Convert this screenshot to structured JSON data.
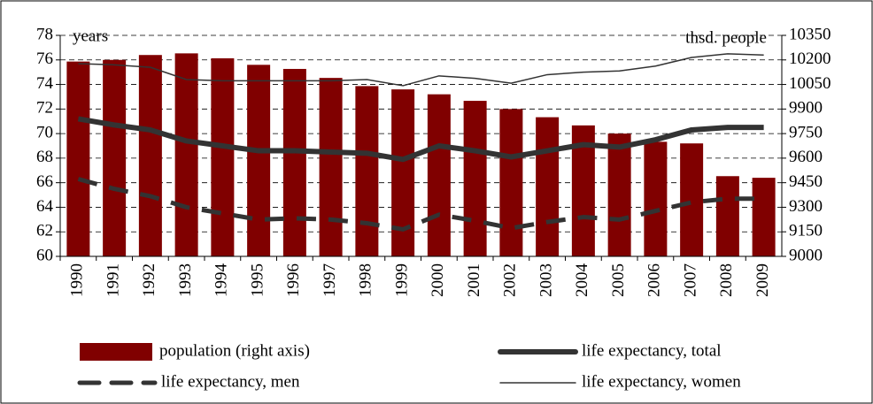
{
  "chart_data": {
    "type": "combo",
    "y_label": "years",
    "y2_label": "thsd. people",
    "categories": [
      "1990",
      "1991",
      "1992",
      "1993",
      "1994",
      "1995",
      "1996",
      "1997",
      "1998",
      "1999",
      "2000",
      "2001",
      "2002",
      "2003",
      "2004",
      "2005",
      "2006",
      "2007",
      "2008",
      "2009"
    ],
    "ylim": [
      60,
      78
    ],
    "yticks": [
      60,
      62,
      64,
      66,
      68,
      70,
      72,
      74,
      76,
      78
    ],
    "y2lim": [
      9000,
      10350
    ],
    "y2ticks": [
      9000,
      9150,
      9300,
      9450,
      9600,
      9750,
      9900,
      10050,
      10200,
      10350
    ],
    "grid": true,
    "series": [
      {
        "name": "population (right axis)",
        "type": "bar",
        "axis": "y2",
        "color": "#800000",
        "values": [
          10190,
          10200,
          10230,
          10240,
          10210,
          10170,
          10145,
          10090,
          10040,
          10020,
          9990,
          9950,
          9900,
          9850,
          9800,
          9750,
          9700,
          9690,
          9490,
          9480
        ]
      },
      {
        "name": "life expectancy, total",
        "type": "line",
        "color": "#333333",
        "line_width": 6,
        "style": "solid",
        "values": [
          71.2,
          70.7,
          70.3,
          69.4,
          69.0,
          68.6,
          68.6,
          68.5,
          68.4,
          67.9,
          69.0,
          68.6,
          68.1,
          68.6,
          69.1,
          68.9,
          69.5,
          70.3,
          70.5,
          70.5
        ]
      },
      {
        "name": "life expectancy, men",
        "type": "line",
        "color": "#333333",
        "line_width": 5,
        "style": "dashed",
        "values": [
          66.3,
          65.5,
          64.9,
          64.0,
          63.5,
          63.0,
          63.1,
          63.0,
          62.7,
          62.2,
          63.4,
          62.9,
          62.3,
          62.8,
          63.2,
          63.0,
          63.7,
          64.4,
          64.7,
          64.7
        ]
      },
      {
        "name": "life expectancy, women",
        "type": "line",
        "color": "#333333",
        "line_width": 1.5,
        "style": "solid",
        "values": [
          75.7,
          75.6,
          75.4,
          74.4,
          74.3,
          74.3,
          74.3,
          74.3,
          74.4,
          73.9,
          74.7,
          74.5,
          74.1,
          74.8,
          75.0,
          75.1,
          75.5,
          76.2,
          76.5,
          76.4
        ]
      }
    ]
  }
}
